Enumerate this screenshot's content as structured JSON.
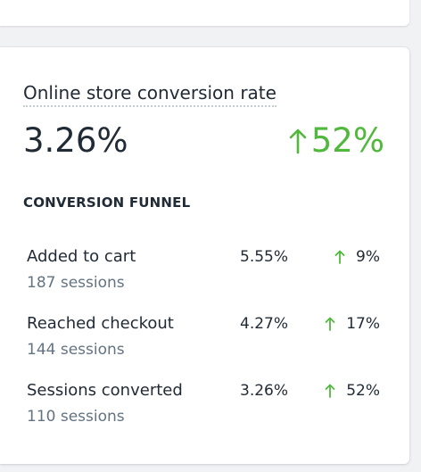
{
  "metric": {
    "title": "Online store conversion rate",
    "value": "3.26%",
    "change": "52%",
    "change_direction": "up",
    "positive_color": "#50b83c"
  },
  "funnel": {
    "heading": "CONVERSION FUNNEL",
    "rows": [
      {
        "label": "Added to cart",
        "sessions": "187 sessions",
        "rate": "5.55%",
        "change": "9%",
        "change_direction": "up"
      },
      {
        "label": "Reached checkout",
        "sessions": "144 sessions",
        "rate": "4.27%",
        "change": "17%",
        "change_direction": "up"
      },
      {
        "label": "Sessions converted",
        "sessions": "110 sessions",
        "rate": "3.26%",
        "change": "52%",
        "change_direction": "up"
      }
    ]
  }
}
